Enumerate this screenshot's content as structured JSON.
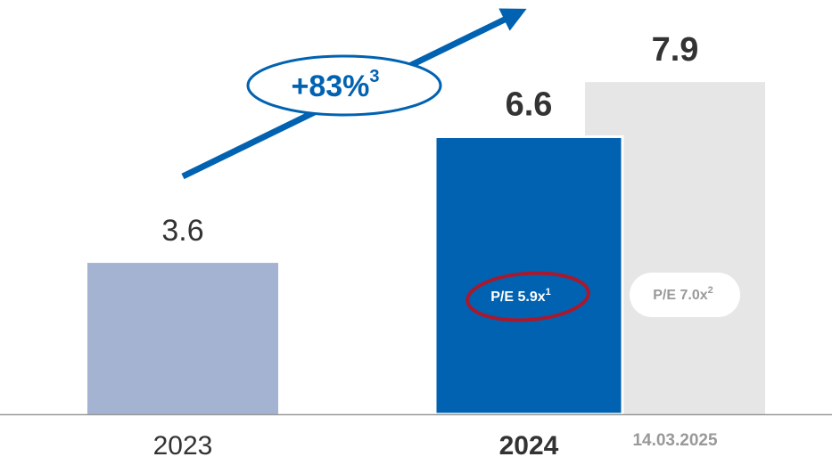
{
  "chart_data": {
    "type": "bar",
    "categories": [
      "2023",
      "2024",
      "14.03.2025"
    ],
    "values": [
      3.6,
      6.6,
      7.9
    ],
    "colors": [
      "#a3b3d1",
      "#0062b1",
      "#e6e6e6"
    ],
    "ylim": [
      0,
      8
    ],
    "annotations": [
      {
        "text": "+83%",
        "sup": "3"
      },
      {
        "text": "P/E 5.9x",
        "sup": "1"
      },
      {
        "text": "P/E 7.0x",
        "sup": "2"
      }
    ]
  }
}
